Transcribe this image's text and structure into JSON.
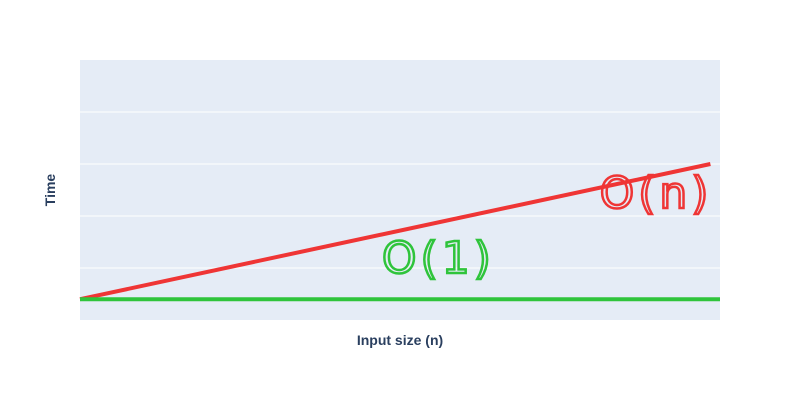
{
  "chart_data": {
    "type": "line",
    "xlabel": "Input size (n)",
    "ylabel": "Time",
    "grid": true,
    "show_tick_labels": false,
    "xlim": [
      0,
      10
    ],
    "ylim": [
      0,
      5
    ],
    "gridlines_y": [
      1,
      2,
      3,
      4
    ],
    "series": [
      {
        "name": "O(n)",
        "color": "#ef3535",
        "x": [
          0,
          9.85
        ],
        "y": [
          0.4,
          3.0
        ]
      },
      {
        "name": "O(1)",
        "color": "#2fc43b",
        "x": [
          0,
          10
        ],
        "y": [
          0.4,
          0.4
        ]
      }
    ],
    "annotations": [
      {
        "text": "O(n)",
        "color": "#ef3535",
        "x": 9.0,
        "y": 2.15
      },
      {
        "text": "O(1)",
        "color": "#2fc43b",
        "x": 5.6,
        "y": 0.9
      }
    ]
  }
}
